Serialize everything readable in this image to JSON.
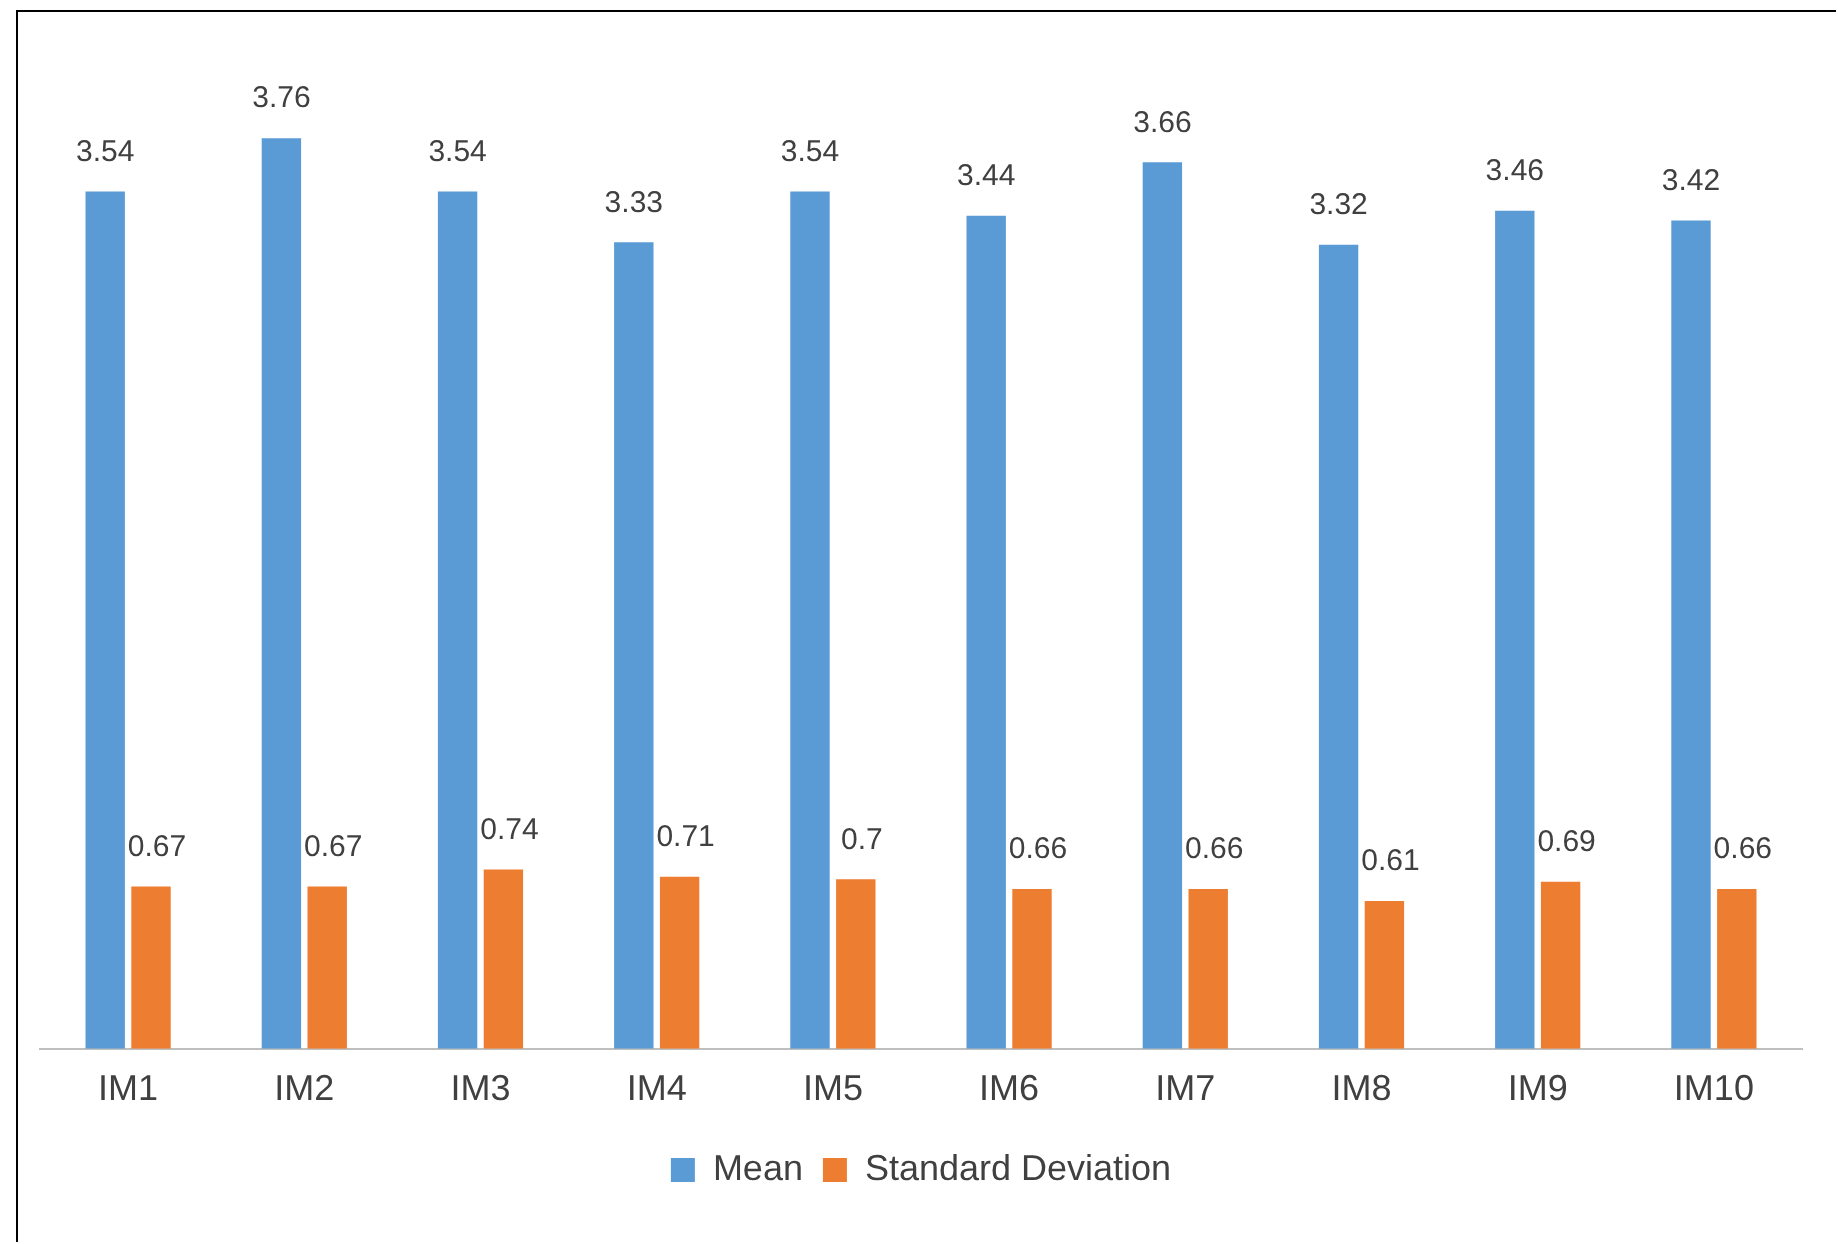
{
  "chart_data": {
    "type": "bar",
    "categories": [
      "IM1",
      "IM2",
      "IM3",
      "IM4",
      "IM5",
      "IM6",
      "IM7",
      "IM8",
      "IM9",
      "IM10"
    ],
    "series": [
      {
        "name": "Mean",
        "color": "#5b9bd5",
        "values": [
          3.54,
          3.76,
          3.54,
          3.33,
          3.54,
          3.44,
          3.66,
          3.32,
          3.46,
          3.42
        ]
      },
      {
        "name": "Standard Deviation",
        "color": "#ed7d31",
        "values": [
          0.67,
          0.67,
          0.74,
          0.71,
          0.7,
          0.66,
          0.66,
          0.61,
          0.69,
          0.66
        ]
      }
    ],
    "data_labels": true,
    "legend": "bottom",
    "grid": false
  }
}
